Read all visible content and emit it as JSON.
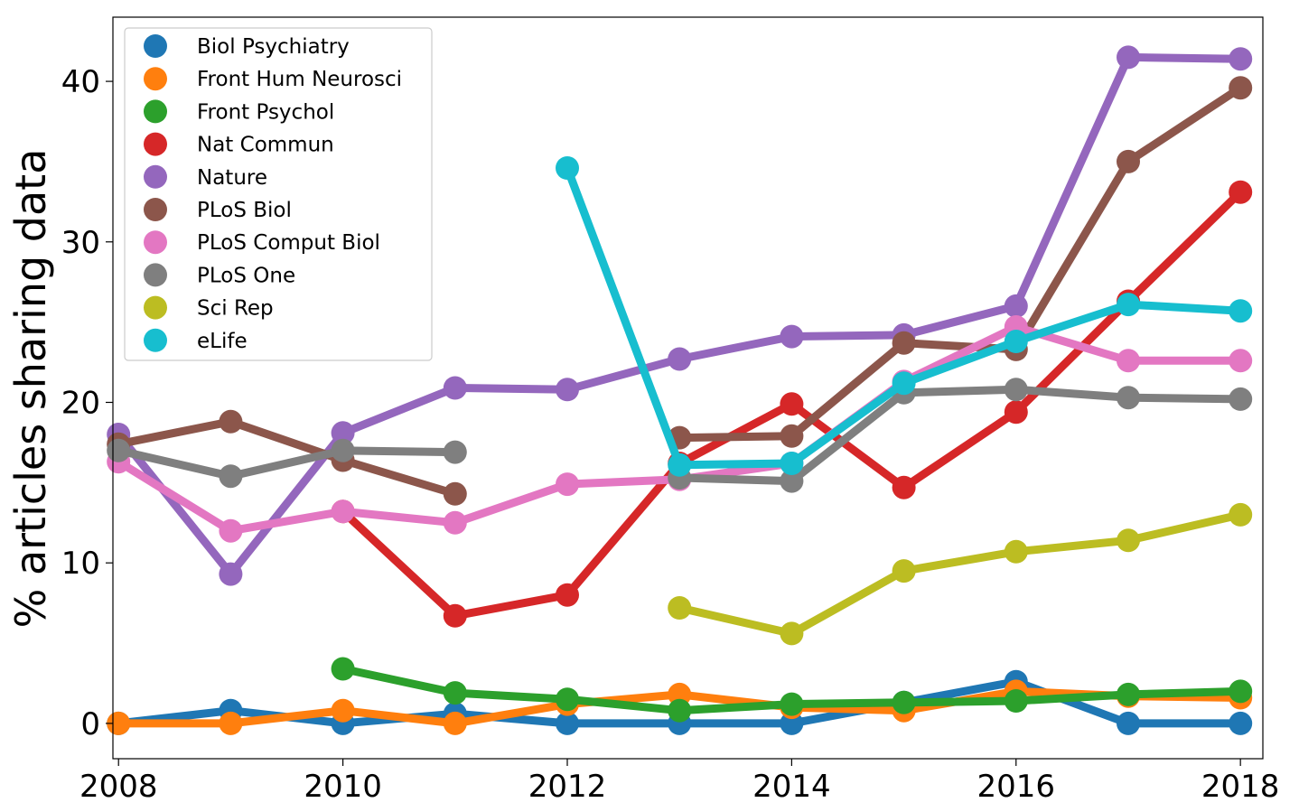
{
  "chart_data": {
    "type": "line",
    "title": "",
    "xlabel": "",
    "ylabel": "% articles sharing data",
    "xlim": [
      2007.95,
      2018.2
    ],
    "ylim": [
      -2.2,
      44
    ],
    "x_ticks": [
      2008,
      2010,
      2012,
      2014,
      2016,
      2018
    ],
    "y_ticks": [
      0,
      10,
      20,
      30,
      40
    ],
    "grid": false,
    "legend_position": "top-left",
    "series": [
      {
        "name": "Biol Psychiatry",
        "color": "#1f77b4",
        "x": [
          2008,
          2009,
          2010,
          2011,
          2012,
          2013,
          2014,
          2015,
          2016,
          2017,
          2018
        ],
        "y": [
          0.0,
          0.8,
          0.0,
          0.6,
          0.0,
          0.0,
          0.0,
          1.3,
          2.6,
          0.0,
          0.0
        ]
      },
      {
        "name": "Front Hum Neurosci",
        "color": "#ff7f0e",
        "x": [
          2008,
          2009,
          2010,
          2011,
          2012,
          2013,
          2014,
          2015,
          2016,
          2017,
          2018
        ],
        "y": [
          0.0,
          0.0,
          0.8,
          0.0,
          1.2,
          1.8,
          1.0,
          0.8,
          2.0,
          1.7,
          1.6
        ]
      },
      {
        "name": "Front Psychol",
        "color": "#2ca02c",
        "x": [
          2010,
          2011,
          2012,
          2013,
          2014,
          2015,
          2016,
          2017,
          2018
        ],
        "y": [
          3.4,
          1.9,
          1.5,
          0.8,
          1.2,
          1.3,
          1.4,
          1.8,
          2.0
        ]
      },
      {
        "name": "Nat Commun",
        "color": "#d62728",
        "x": [
          2010,
          2011,
          2012,
          2013,
          2014,
          2015,
          2016,
          2017,
          2018
        ],
        "y": [
          13.2,
          6.7,
          8.0,
          16.2,
          19.9,
          14.7,
          19.4,
          26.3,
          33.1
        ]
      },
      {
        "name": "Nature",
        "color": "#9467bd",
        "x": [
          2008,
          2009,
          2010,
          2011,
          2012,
          2013,
          2014,
          2015,
          2016,
          2017,
          2018
        ],
        "y": [
          18.0,
          9.3,
          18.1,
          20.9,
          20.8,
          22.7,
          24.1,
          24.2,
          26.0,
          41.5,
          41.4
        ]
      },
      {
        "name": "PLoS Biol",
        "color": "#8c564b",
        "x": [
          2008,
          2009,
          2010,
          2011,
          null,
          2013,
          2014,
          2015,
          2016,
          2017,
          2018
        ],
        "y": [
          17.4,
          18.8,
          16.4,
          14.3,
          null,
          17.8,
          17.9,
          23.7,
          23.3,
          35.0,
          39.6
        ]
      },
      {
        "name": "PLoS Comput Biol",
        "color": "#e377c2",
        "x": [
          2008,
          2009,
          2010,
          2011,
          2012,
          2013,
          2014,
          2015,
          2016,
          2017,
          2018
        ],
        "y": [
          16.3,
          12.0,
          13.2,
          12.5,
          14.9,
          15.2,
          16.2,
          21.3,
          24.7,
          22.6,
          22.6
        ]
      },
      {
        "name": "PLoS One",
        "color": "#7f7f7f",
        "x": [
          2008,
          2009,
          2010,
          2011,
          null,
          2013,
          2014,
          2015,
          2016,
          2017,
          2018
        ],
        "y": [
          17.0,
          15.4,
          17.0,
          16.9,
          null,
          15.3,
          15.1,
          20.6,
          20.8,
          20.3,
          20.2
        ]
      },
      {
        "name": "Sci Rep",
        "color": "#bcbd22",
        "x": [
          2013,
          2014,
          2015,
          2016,
          2017,
          2018
        ],
        "y": [
          7.2,
          5.6,
          9.5,
          10.7,
          11.4,
          13.0
        ]
      },
      {
        "name": "eLife",
        "color": "#17becf",
        "x": [
          2012,
          2013,
          2014,
          2015,
          2016,
          2017,
          2018
        ],
        "y": [
          34.6,
          16.1,
          16.2,
          21.2,
          23.8,
          26.1,
          25.7
        ]
      }
    ]
  }
}
